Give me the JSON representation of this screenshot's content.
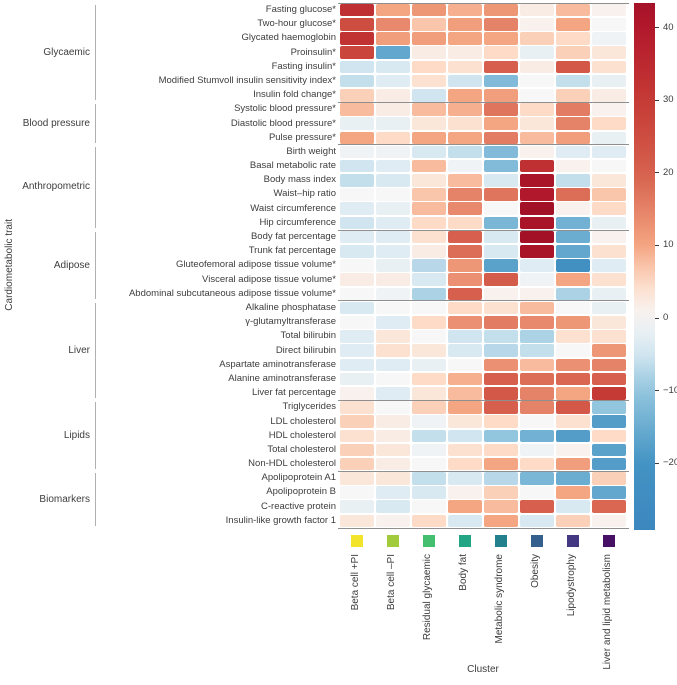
{
  "figure": {
    "y_axis_title": "Cardiometabolic trait",
    "x_axis_title": "Cluster"
  },
  "chart_data": {
    "type": "heatmap",
    "columns": [
      {
        "label": "Beta cell +PI",
        "color": "#f2e32b"
      },
      {
        "label": "Beta cell –PI",
        "color": "#a2cb3b"
      },
      {
        "label": "Residual glycaemic",
        "color": "#44bf70"
      },
      {
        "label": "Body fat",
        "color": "#21a585"
      },
      {
        "label": "Metabolic syndrome",
        "color": "#22808d"
      },
      {
        "label": "Obesity",
        "color": "#35608d"
      },
      {
        "label": "Lipodystrophy",
        "color": "#453883"
      },
      {
        "label": "Liver and lipid metabolism",
        "color": "#471064"
      }
    ],
    "groups": [
      {
        "name": "Glycaemic",
        "rows": [
          {
            "label": "Fasting glucose*",
            "values": [
              33,
              10,
              12,
              9,
              12,
              2,
              8,
              1
            ]
          },
          {
            "label": "Two-hour glucose*",
            "values": [
              25,
              14,
              7,
              11,
              15,
              1,
              10,
              0
            ]
          },
          {
            "label": "Glycated haemoglobin",
            "values": [
              32,
              11,
              11,
              10,
              10,
              6,
              5,
              -1
            ]
          },
          {
            "label": "Proinsulin*",
            "values": [
              27,
              -16,
              2,
              2,
              5,
              -2,
              6,
              3
            ]
          },
          {
            "label": "Fasting insulin*",
            "values": [
              -5,
              -4,
              5,
              4,
              20,
              2,
              22,
              4
            ]
          },
          {
            "label": "Modified Stumvoll insulin sensitivity index*",
            "values": [
              -6,
              -3,
              4,
              -5,
              -12,
              0,
              -6,
              -2
            ]
          },
          {
            "label": "Insulin fold change*",
            "values": [
              6,
              2,
              -5,
              10,
              11,
              0,
              6,
              2
            ]
          }
        ]
      },
      {
        "name": "Blood pressure",
        "rows": [
          {
            "label": "Systolic blood pressure*",
            "values": [
              8,
              2,
              8,
              9,
              17,
              5,
              16,
              1
            ]
          },
          {
            "label": "Diastolic blood pressure*",
            "values": [
              -2,
              -2,
              3,
              4,
              10,
              3,
              15,
              5
            ]
          },
          {
            "label": "Pulse pressure*",
            "values": [
              10,
              5,
              10,
              10,
              16,
              8,
              11,
              -2
            ]
          }
        ]
      },
      {
        "name": "Anthropometric",
        "rows": [
          {
            "label": "Birth weight",
            "values": [
              -1,
              -1,
              -4,
              -6,
              -12,
              1,
              -3,
              -3
            ]
          },
          {
            "label": "Basal metabolic rate",
            "values": [
              -5,
              -3,
              8,
              -1,
              -12,
              33,
              1,
              0
            ]
          },
          {
            "label": "Body mass index",
            "values": [
              -6,
              -4,
              3,
              8,
              -4,
              42,
              -6,
              3
            ]
          },
          {
            "label": "Waist–hip ratio",
            "values": [
              0,
              0,
              7,
              15,
              17,
              40,
              18,
              7
            ]
          },
          {
            "label": "Waist circumference",
            "values": [
              -3,
              -2,
              8,
              14,
              0,
              44,
              1,
              5
            ]
          },
          {
            "label": "Hip circumference",
            "values": [
              -5,
              -3,
              5,
              5,
              -13,
              42,
              -14,
              -2
            ]
          }
        ]
      },
      {
        "name": "Adipose",
        "rows": [
          {
            "label": "Body fat percentage",
            "values": [
              -3,
              -3,
              4,
              20,
              -4,
              44,
              -15,
              1
            ]
          },
          {
            "label": "Trunk fat percentage",
            "values": [
              -4,
              -3,
              2,
              18,
              -4,
              42,
              -16,
              4
            ]
          },
          {
            "label": "Gluteofemoral adipose tissue volume*",
            "values": [
              0,
              -2,
              -7,
              12,
              -17,
              -3,
              -22,
              -3
            ]
          },
          {
            "label": "Visceral adipose tissue volume*",
            "values": [
              2,
              2,
              -4,
              13,
              21,
              -1,
              10,
              4
            ]
          },
          {
            "label": "Abdominal subcutaneous adipose tissue volume*",
            "values": [
              0,
              -1,
              -8,
              20,
              1,
              1,
              -8,
              -2
            ]
          }
        ]
      },
      {
        "name": "Liver",
        "rows": [
          {
            "label": "Alkaline phosphatase",
            "values": [
              -4,
              0,
              0,
              5,
              4,
              8,
              0,
              -2
            ]
          },
          {
            "label": "γ-glutamyltransferase",
            "values": [
              0,
              -3,
              5,
              13,
              16,
              14,
              12,
              3
            ]
          },
          {
            "label": "Total bilirubin",
            "values": [
              -3,
              3,
              0,
              -5,
              -6,
              -8,
              4,
              4
            ]
          },
          {
            "label": "Direct bilirubin",
            "values": [
              -3,
              4,
              3,
              -4,
              -7,
              -6,
              0,
              12
            ]
          },
          {
            "label": "Aspartate aminotransferase",
            "values": [
              -3,
              -3,
              -2,
              0,
              13,
              8,
              13,
              15
            ]
          },
          {
            "label": "Alanine aminotransferase",
            "values": [
              -2,
              0,
              5,
              9,
              20,
              18,
              19,
              20
            ]
          },
          {
            "label": "Liver fat percentage",
            "values": [
              1,
              -3,
              3,
              8,
              22,
              15,
              10,
              30
            ]
          }
        ]
      },
      {
        "name": "Lipids",
        "rows": [
          {
            "label": "Triglycerides",
            "values": [
              4,
              0,
              6,
              10,
              20,
              15,
              22,
              -10
            ]
          },
          {
            "label": "LDL cholesterol",
            "values": [
              6,
              2,
              -1,
              3,
              5,
              0,
              4,
              -18
            ]
          },
          {
            "label": "HDL cholesterol",
            "values": [
              4,
              2,
              -6,
              -5,
              -10,
              -14,
              -18,
              5
            ]
          },
          {
            "label": "Total cholesterol",
            "values": [
              6,
              3,
              -1,
              4,
              5,
              -1,
              1,
              -17
            ]
          },
          {
            "label": "Non-HDL cholesterol",
            "values": [
              6,
              2,
              0,
              5,
              10,
              5,
              11,
              -18
            ]
          }
        ]
      },
      {
        "name": "Biomarkers",
        "rows": [
          {
            "label": "Apolipoprotein A1",
            "values": [
              3,
              3,
              -6,
              -4,
              -7,
              -13,
              -15,
              6
            ]
          },
          {
            "label": "Apolipoprotein B",
            "values": [
              0,
              -3,
              -4,
              1,
              6,
              0,
              10,
              -16
            ]
          },
          {
            "label": "C-reactive protein",
            "values": [
              -2,
              -4,
              0,
              10,
              8,
              20,
              -4,
              19
            ]
          },
          {
            "label": "Insulin-like growth factor 1",
            "values": [
              3,
              1,
              5,
              -4,
              10,
              -4,
              6,
              1
            ]
          }
        ]
      }
    ],
    "colorbar": {
      "ticks": [
        40,
        30,
        20,
        10,
        0,
        -10,
        -20
      ],
      "tick_labels": [
        "40",
        "30",
        "20",
        "10",
        "0",
        "−10",
        "−20"
      ],
      "vmin": -29.2,
      "vmax": 43.4
    },
    "color_scale": {
      "stops": [
        {
          "v": -30,
          "color": "#3c86bf"
        },
        {
          "v": -20,
          "color": "#4393c3"
        },
        {
          "v": -10,
          "color": "#92c5de"
        },
        {
          "v": -5,
          "color": "#d1e5f0"
        },
        {
          "v": 0,
          "color": "#f7f7f7"
        },
        {
          "v": 5,
          "color": "#fddbc7"
        },
        {
          "v": 10,
          "color": "#f4a582"
        },
        {
          "v": 20,
          "color": "#d6604d"
        },
        {
          "v": 30,
          "color": "#c53a35"
        },
        {
          "v": 40,
          "color": "#b2182b"
        },
        {
          "v": 46,
          "color": "#9b0d25"
        }
      ]
    }
  }
}
